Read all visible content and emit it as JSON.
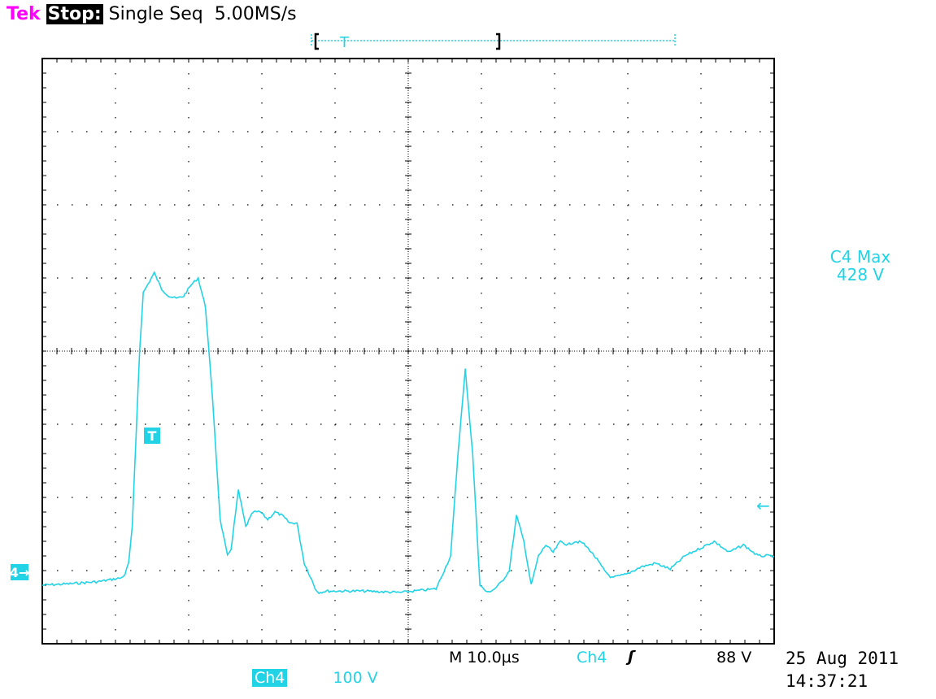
{
  "header": {
    "brand": "Tek",
    "state": "Stop:",
    "mode": "Single Seq",
    "sample_rate": "5.00MS/s"
  },
  "markers": {
    "trigger_label": "T",
    "channel_ground_label": "4→",
    "right_arrow": "←"
  },
  "measurement": {
    "label": "C4 Max",
    "value": "428 V"
  },
  "timebase": {
    "label": "M 10.0µs",
    "channel": "Ch4",
    "slope_symbol": "ʃ",
    "level": "88 V"
  },
  "channel_scale": {
    "channel": "Ch4",
    "volts_per_div": "100 V"
  },
  "timestamp": {
    "date": "25 Aug 2011",
    "time": "14:37:21"
  },
  "colors": {
    "trace": "#22d3e6",
    "brand": "#ff00ff",
    "grid": "#000000"
  },
  "chart_data": {
    "type": "line",
    "title": "",
    "xlabel": "",
    "ylabel": "",
    "x_unit": "µs",
    "y_unit": "V",
    "xlim": [
      -13.8,
      86.2
    ],
    "ylim": [
      -80,
      720
    ],
    "grid": true,
    "series": [
      {
        "x": [
          -13.8,
          -10,
          -6,
          -3,
          -2.5,
          -2,
          -1.5,
          -1,
          -0.5,
          0,
          1.5,
          2.5,
          3.5,
          4.5,
          5.5,
          6.5,
          7.5,
          8.5,
          9.5,
          10.5,
          11.5,
          12,
          13,
          14,
          15,
          16,
          17,
          18,
          19,
          20,
          21,
          22,
          23,
          23.5,
          24,
          25,
          26,
          30,
          35,
          40,
          42,
          43,
          44,
          45,
          46,
          47,
          48,
          49,
          50,
          51,
          52,
          53,
          54,
          55,
          56,
          57,
          58,
          59,
          60,
          61,
          62,
          63,
          64,
          66,
          68,
          70,
          72,
          74,
          76,
          78,
          80,
          82,
          84,
          86.2
        ],
        "y": [
          0,
          2,
          5,
          10,
          15,
          30,
          80,
          200,
          320,
          400,
          427,
          405,
          395,
          392,
          395,
          410,
          420,
          380,
          250,
          90,
          40,
          50,
          130,
          80,
          100,
          100,
          90,
          100,
          95,
          85,
          85,
          30,
          8,
          -5,
          -10,
          -8,
          -8,
          -8,
          -10,
          -5,
          40,
          180,
          295,
          180,
          0,
          -10,
          -5,
          5,
          20,
          95,
          60,
          0,
          40,
          55,
          45,
          60,
          55,
          60,
          58,
          48,
          35,
          20,
          10,
          15,
          25,
          30,
          22,
          40,
          50,
          60,
          45,
          55,
          40,
          40
        ]
      }
    ]
  }
}
